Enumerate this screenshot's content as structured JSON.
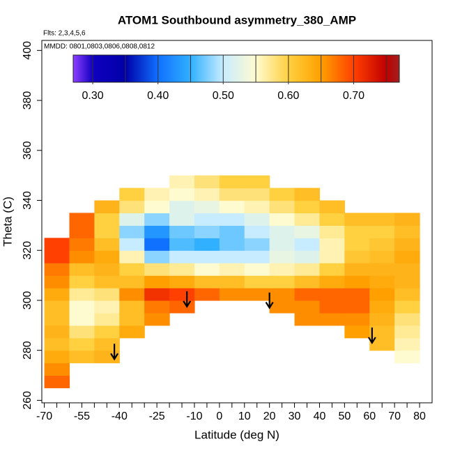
{
  "chart_data": {
    "type": "heatmap",
    "title": "ATOM1 Southbound asymmetry_380_AMP",
    "annotations": [
      "Flts: 2,3,4,5,6",
      "MMDD: 0801,0803,0806,0808,0812"
    ],
    "xlabel": "Latitude (deg N)",
    "ylabel": "Theta (C)",
    "xlim": [
      -71,
      85
    ],
    "ylim": [
      259,
      404
    ],
    "xticks": [
      -70,
      -55,
      -40,
      -25,
      -10,
      0,
      10,
      20,
      30,
      40,
      50,
      60,
      70,
      80
    ],
    "xminor_ticks": [
      -65,
      -60,
      -50,
      -45,
      -35,
      -30,
      -20,
      -15,
      -5,
      5,
      15,
      25,
      35,
      45,
      55,
      65,
      75
    ],
    "yticks": [
      260,
      280,
      300,
      320,
      340,
      360,
      380,
      400
    ],
    "x": [
      -65,
      -55,
      -45,
      -35,
      -25,
      -15,
      -5,
      5,
      15,
      25,
      35,
      45,
      55,
      65,
      75
    ],
    "y": [
      267.5,
      272.5,
      277.5,
      282.5,
      287.5,
      292.5,
      297.5,
      302.5,
      307.5,
      312.5,
      317.5,
      322.5,
      327.5,
      332.5,
      337.5,
      342.5,
      347.5
    ],
    "z": [
      [
        0.68,
        null,
        null,
        null,
        null,
        null,
        null,
        null,
        null,
        null,
        null,
        null,
        null,
        null,
        null
      ],
      [
        0.66,
        null,
        null,
        null,
        null,
        null,
        null,
        null,
        null,
        null,
        null,
        null,
        null,
        null,
        null
      ],
      [
        0.64,
        0.62,
        0.63,
        null,
        null,
        null,
        null,
        null,
        null,
        null,
        null,
        null,
        null,
        null,
        0.55
      ],
      [
        0.62,
        0.6,
        0.62,
        null,
        null,
        null,
        null,
        null,
        null,
        null,
        null,
        null,
        null,
        0.62,
        0.56
      ],
      [
        0.63,
        0.58,
        0.6,
        0.64,
        null,
        null,
        null,
        null,
        null,
        null,
        null,
        null,
        0.65,
        0.62,
        0.57
      ],
      [
        0.62,
        0.55,
        0.57,
        0.62,
        0.66,
        null,
        null,
        null,
        null,
        null,
        0.66,
        0.66,
        0.66,
        0.63,
        0.58
      ],
      [
        0.62,
        0.55,
        0.56,
        0.62,
        0.67,
        0.68,
        null,
        null,
        null,
        0.66,
        0.66,
        0.68,
        0.68,
        0.64,
        0.6
      ],
      [
        0.64,
        0.57,
        0.58,
        0.66,
        0.71,
        0.7,
        0.68,
        0.66,
        0.66,
        0.66,
        0.68,
        0.68,
        0.68,
        0.65,
        0.62
      ],
      [
        0.66,
        0.6,
        0.62,
        0.62,
        0.65,
        0.64,
        0.62,
        0.62,
        0.6,
        0.6,
        0.62,
        0.64,
        0.65,
        0.64,
        0.63
      ],
      [
        0.67,
        0.62,
        0.63,
        0.6,
        0.58,
        0.57,
        0.55,
        0.56,
        0.55,
        0.56,
        0.57,
        0.6,
        0.63,
        0.63,
        0.63
      ],
      [
        0.7,
        0.66,
        0.64,
        0.56,
        0.48,
        0.5,
        0.5,
        0.5,
        0.5,
        0.53,
        0.52,
        0.56,
        0.61,
        0.62,
        0.64
      ],
      [
        0.7,
        0.67,
        0.62,
        0.5,
        0.4,
        0.46,
        0.45,
        0.47,
        0.48,
        0.52,
        0.5,
        0.56,
        0.6,
        0.61,
        0.63
      ],
      [
        null,
        0.68,
        0.6,
        0.48,
        0.43,
        0.47,
        0.48,
        0.47,
        0.5,
        0.52,
        0.53,
        0.57,
        0.6,
        0.6,
        0.62
      ],
      [
        null,
        0.68,
        0.6,
        0.52,
        0.48,
        0.52,
        0.5,
        0.5,
        0.52,
        0.55,
        0.57,
        0.6,
        0.62,
        0.62,
        0.63
      ],
      [
        null,
        null,
        0.63,
        0.58,
        0.55,
        0.52,
        0.53,
        0.55,
        0.56,
        0.58,
        0.6,
        0.62,
        null,
        null,
        null
      ],
      [
        null,
        null,
        null,
        0.6,
        0.56,
        0.55,
        0.56,
        0.58,
        0.58,
        0.6,
        0.62,
        null,
        null,
        null,
        null
      ],
      [
        null,
        null,
        null,
        null,
        null,
        0.56,
        0.58,
        0.6,
        0.6,
        null,
        null,
        null,
        null,
        null,
        null
      ]
    ],
    "markers": {
      "x": [
        -42,
        -13,
        20,
        61
      ],
      "y": [
        276.5,
        297.5,
        297,
        283
      ]
    },
    "colorbar": {
      "lim": [
        0.27,
        0.77
      ],
      "ticks": [
        {
          "value": 0.3,
          "label": "0.30"
        },
        {
          "value": 0.4,
          "label": "0.40"
        },
        {
          "value": 0.5,
          "label": "0.50"
        },
        {
          "value": 0.6,
          "label": "0.60"
        },
        {
          "value": 0.7,
          "label": "0.70"
        }
      ],
      "stops": [
        0.27,
        0.3,
        0.35,
        0.4,
        0.45,
        0.5,
        0.55,
        0.6,
        0.65,
        0.7,
        0.75,
        0.77
      ],
      "colors": [
        "#8f3fff",
        "#1000c0",
        "#0000a8",
        "#1070ff",
        "#30b0ff",
        "#c8ecff",
        "#fffbd0",
        "#ffd040",
        "#ffa000",
        "#ff4000",
        "#c00000",
        "#a02020"
      ]
    }
  }
}
